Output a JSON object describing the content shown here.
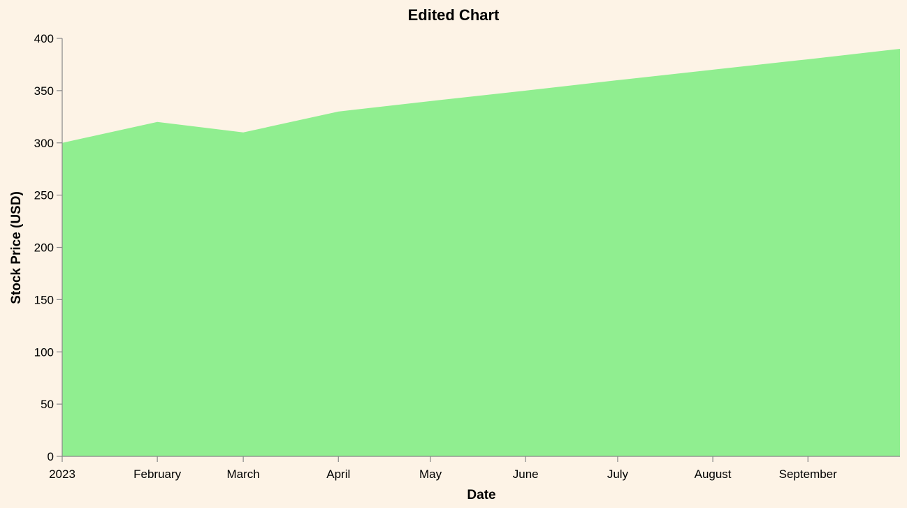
{
  "chart_data": {
    "type": "area",
    "title": "Edited Chart",
    "xlabel": "Date",
    "ylabel": "Stock Price (USD)",
    "x": [
      "2023-01-01",
      "2023-02-01",
      "2023-03-01",
      "2023-04-01",
      "2023-05-01",
      "2023-06-01",
      "2023-07-01",
      "2023-08-01",
      "2023-09-01",
      "2023-10-01"
    ],
    "values": [
      300,
      320,
      310,
      330,
      340,
      350,
      360,
      370,
      380,
      390
    ],
    "xlim": [
      "2023-01-01",
      "2023-10-01"
    ],
    "ylim": [
      0,
      400
    ],
    "y_ticks": [
      0,
      50,
      100,
      150,
      200,
      250,
      300,
      350,
      400
    ],
    "x_ticks": [
      {
        "date": "2023-01-01",
        "label": "2023"
      },
      {
        "date": "2023-02-01",
        "label": "February"
      },
      {
        "date": "2023-03-01",
        "label": "March"
      },
      {
        "date": "2023-04-01",
        "label": "April"
      },
      {
        "date": "2023-05-01",
        "label": "May"
      },
      {
        "date": "2023-06-01",
        "label": "June"
      },
      {
        "date": "2023-07-01",
        "label": "July"
      },
      {
        "date": "2023-08-01",
        "label": "August"
      },
      {
        "date": "2023-09-01",
        "label": "September"
      }
    ],
    "fill_color": "#90ee90",
    "background_color": "#fdf3e6",
    "grid": false
  }
}
